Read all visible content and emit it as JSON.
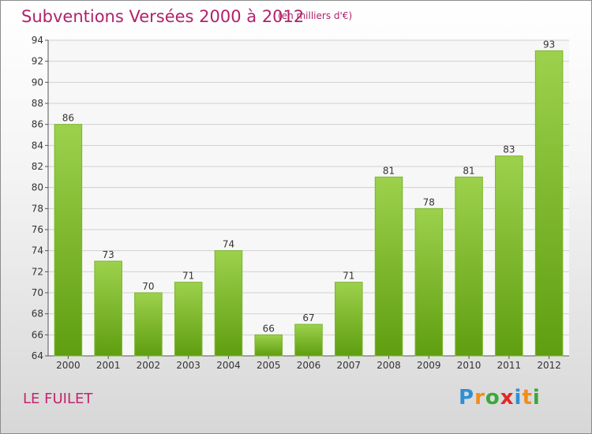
{
  "header": {
    "title": "Subventions Versées 2000 à 2012",
    "subtitle": "(en milliers d'€)"
  },
  "footer": {
    "commune": "LE FUILET",
    "logo_letters": [
      "P",
      "r",
      "o",
      "x",
      "i",
      "t",
      "i"
    ],
    "logo_colors": [
      "#2f8fd4",
      "#f28c1c",
      "#3aa83a",
      "#e02828",
      "#2f8fd4",
      "#f28c1c",
      "#3aa83a"
    ]
  },
  "colors": {
    "bar_light": "#9dd14d",
    "bar_dark": "#5f9e10",
    "title": "#b0236a",
    "grid": "#d0d0d0"
  },
  "chart_data": {
    "type": "bar",
    "categories": [
      "2000",
      "2001",
      "2002",
      "2003",
      "2004",
      "2005",
      "2006",
      "2007",
      "2008",
      "2009",
      "2010",
      "2011",
      "2012"
    ],
    "values": [
      86,
      73,
      70,
      71,
      74,
      66,
      67,
      71,
      81,
      78,
      81,
      83,
      93
    ],
    "ylim": [
      64,
      94
    ],
    "yticks": [
      64,
      66,
      68,
      70,
      72,
      74,
      76,
      78,
      80,
      82,
      84,
      86,
      88,
      90,
      92,
      94
    ],
    "grid": true
  }
}
